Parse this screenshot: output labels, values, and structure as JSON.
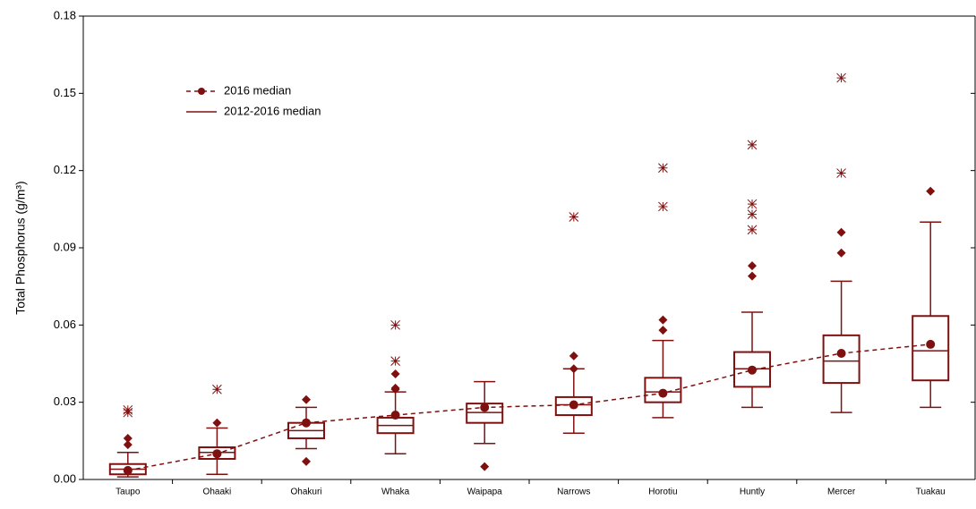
{
  "chart_data": {
    "type": "box",
    "y_label": "Total Phosphorus (g/m³)",
    "categories": [
      "Taupo",
      "Ohaaki",
      "Ohakuri",
      "Whaka",
      "Waipapa",
      "Narrows",
      "Horotiu",
      "Huntly",
      "Mercer",
      "Tuakau"
    ],
    "color": "#7f1010",
    "ylim": [
      0,
      0.18
    ],
    "yticks": [
      {
        "value": 0,
        "label": "0.00"
      },
      0.03,
      0.06,
      0.09,
      0.12,
      0.15,
      0.18
    ],
    "boxes": {
      "name": "2012-2016 median",
      "whisker_low": [
        0.001,
        0.002,
        0.012,
        0.01,
        0.014,
        0.018,
        0.024,
        0.028,
        0.026,
        0.028
      ],
      "q1": [
        0.002,
        0.008,
        0.016,
        0.018,
        0.022,
        0.025,
        0.03,
        0.036,
        0.0375,
        0.0385
      ],
      "median": [
        0.004,
        0.0105,
        0.019,
        0.021,
        0.026,
        0.029,
        0.034,
        0.043,
        0.046,
        0.05
      ],
      "q3": [
        0.006,
        0.0125,
        0.022,
        0.024,
        0.0295,
        0.032,
        0.0395,
        0.0495,
        0.056,
        0.0635
      ],
      "whisker_high": [
        0.0105,
        0.02,
        0.028,
        0.034,
        0.038,
        0.043,
        0.054,
        0.065,
        0.077,
        0.1
      ],
      "outliers": [
        [
          0.016,
          0.0135
        ],
        [
          0.022
        ],
        [
          0.031,
          0.007
        ],
        [
          0.035,
          0.041,
          0.0355
        ],
        [
          0.005
        ],
        [
          0.043,
          0.048
        ],
        [
          0.058,
          0.062
        ],
        [
          0.079,
          0.083
        ],
        [
          0.088,
          0.096
        ],
        [
          0.112
        ]
      ],
      "extremes": [
        [
          0.027,
          0.026
        ],
        [
          0.035
        ],
        [],
        [
          0.046,
          0.06
        ],
        [],
        [
          0.102
        ],
        [
          0.106,
          0.121
        ],
        [
          0.097,
          0.103,
          0.107,
          0.13
        ],
        [
          0.119,
          0.156
        ],
        []
      ]
    },
    "series": [
      {
        "name": "2016 median",
        "values": [
          0.0035,
          0.01,
          0.022,
          0.025,
          0.028,
          0.029,
          0.0335,
          0.0425,
          0.049,
          0.0525
        ]
      }
    ]
  }
}
